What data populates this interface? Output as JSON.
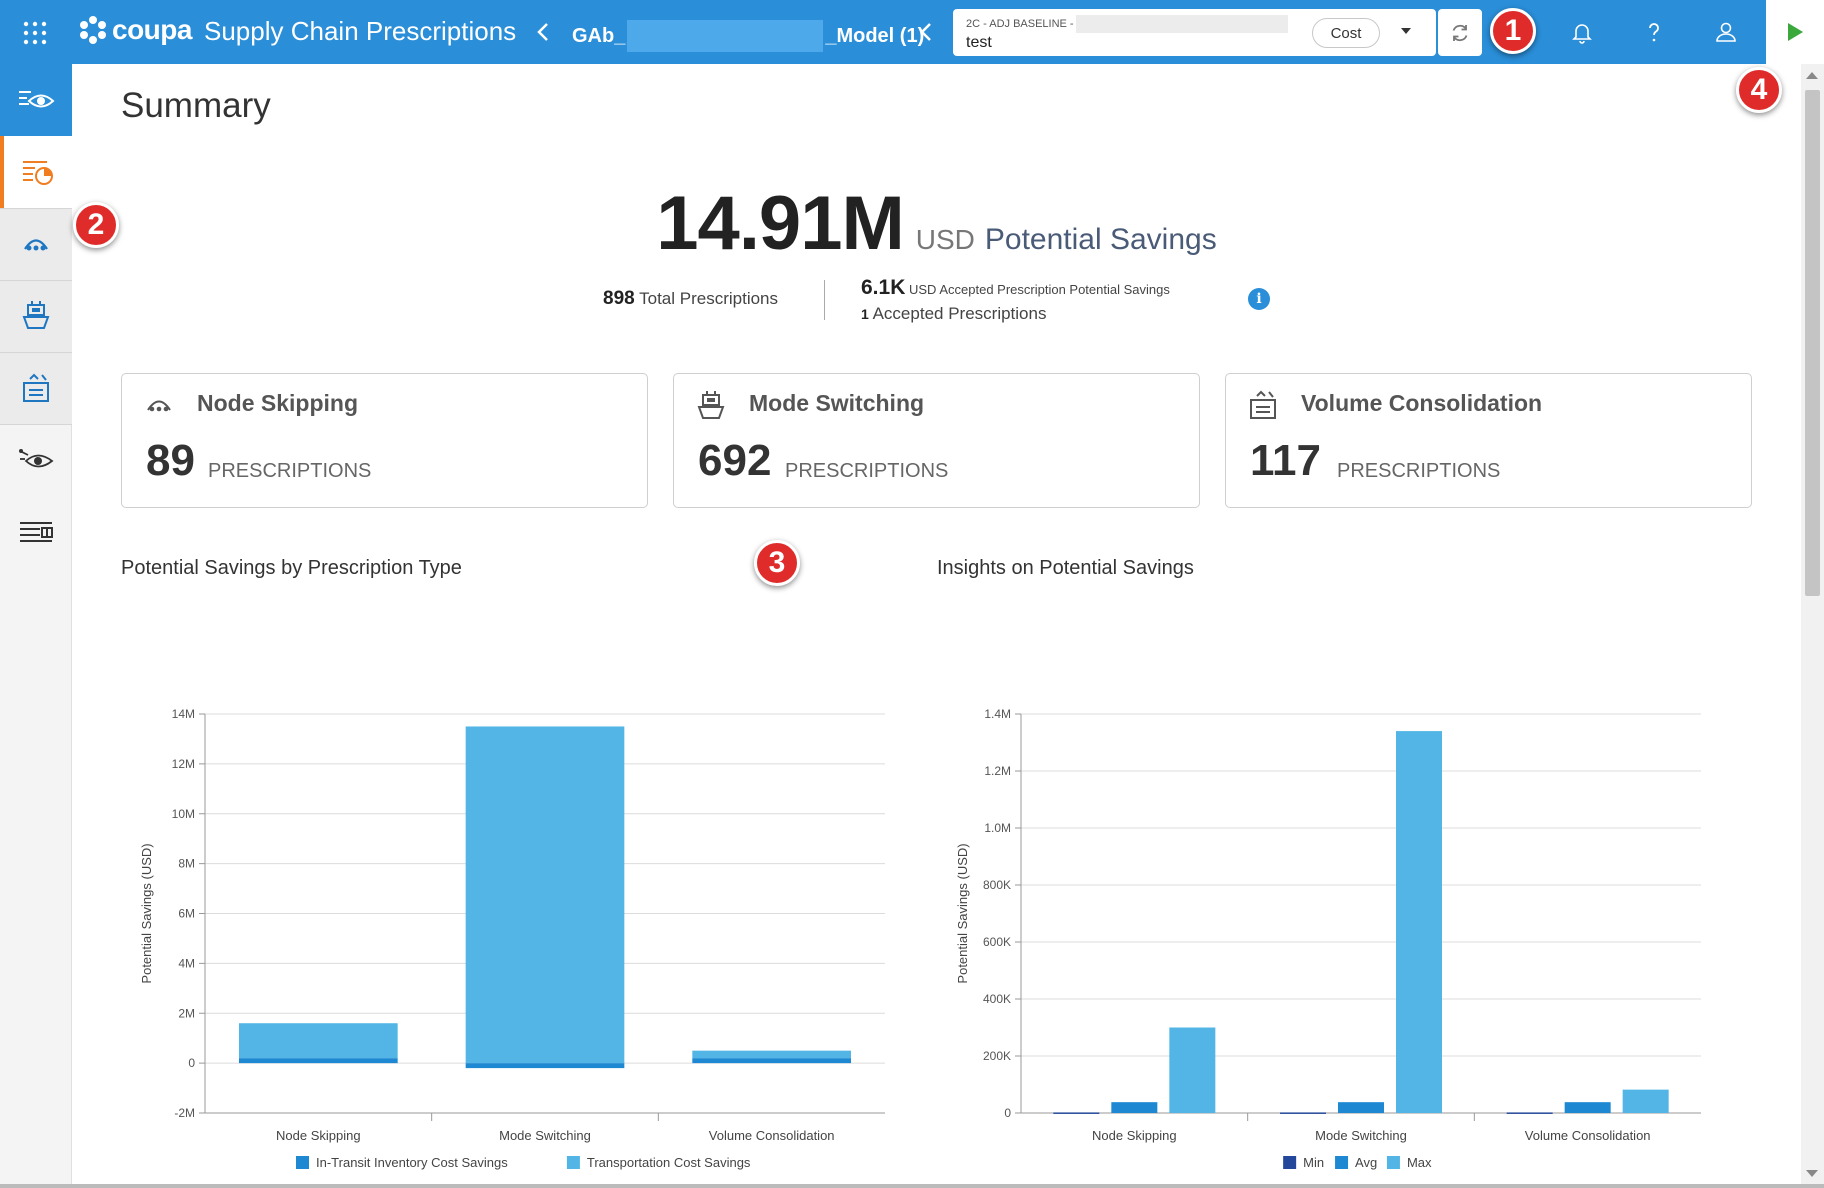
{
  "header": {
    "app_logo": "coupa",
    "app_title": "Supply Chain Prescriptions",
    "model_prefix": "GAb_",
    "model_suffix": "_Model (1)",
    "scenario_label": "2C - ADJ BASELINE -",
    "scenario_value": "test",
    "metric_selector": "Cost",
    "icons": [
      "apps-grid-icon",
      "chevron-left-icon",
      "refresh-icon",
      "bell-icon",
      "help-icon",
      "user-icon",
      "play-icon"
    ]
  },
  "callouts": [
    "1",
    "2",
    "3",
    "4"
  ],
  "sidebar": {
    "items": [
      {
        "name": "overview-icon"
      },
      {
        "name": "summary-icon"
      },
      {
        "name": "node-skipping-icon"
      },
      {
        "name": "mode-switching-icon"
      },
      {
        "name": "volume-consolidation-icon"
      },
      {
        "name": "insights-icon"
      },
      {
        "name": "table-icon"
      }
    ]
  },
  "summary": {
    "title": "Summary",
    "potential_savings_value": "14.91M",
    "currency": "USD",
    "potential_savings_label": "Potential Savings",
    "total_prescriptions_count": "898",
    "total_prescriptions_label": "Total Prescriptions",
    "accepted_savings_value": "6.1K",
    "accepted_savings_currency": "USD",
    "accepted_savings_label": "Accepted Prescription Potential Savings",
    "accepted_count": "1",
    "accepted_label": "Accepted Prescriptions",
    "info": "i"
  },
  "cards": [
    {
      "title": "Node Skipping",
      "count": "89",
      "unit": "PRESCRIPTIONS"
    },
    {
      "title": "Mode Switching",
      "count": "692",
      "unit": "PRESCRIPTIONS"
    },
    {
      "title": "Volume Consolidation",
      "count": "117",
      "unit": "PRESCRIPTIONS"
    }
  ],
  "chart_data": [
    {
      "type": "bar",
      "stacked": true,
      "title": "Potential Savings by Prescription Type",
      "ylabel": "Potential Savings (USD)",
      "categories": [
        "Node Skipping",
        "Mode Switching",
        "Volume Consolidation"
      ],
      "series": [
        {
          "name": "In-Transit Inventory Cost Savings",
          "color": "#1e88d3",
          "values": [
            0.2,
            -0.2,
            0.2
          ]
        },
        {
          "name": "Transportation Cost Savings",
          "color": "#52b5e6",
          "values": [
            1.4,
            13.5,
            0.3
          ]
        }
      ],
      "ylim": [
        -2,
        14
      ],
      "yticks": [
        "-2M",
        "0",
        "2M",
        "4M",
        "6M",
        "8M",
        "10M",
        "12M",
        "14M"
      ],
      "ytick_values": [
        -2,
        0,
        2,
        4,
        6,
        8,
        10,
        12,
        14
      ],
      "grid": true,
      "legend": "bottom"
    },
    {
      "type": "bar",
      "stacked": false,
      "title": "Insights on Potential Savings",
      "ylabel": "Potential Savings (USD)",
      "categories": [
        "Node Skipping",
        "Mode Switching",
        "Volume Consolidation"
      ],
      "series": [
        {
          "name": "Min",
          "color": "#23479a",
          "values": [
            2000,
            2000,
            2000
          ]
        },
        {
          "name": "Avg",
          "color": "#1e88d3",
          "values": [
            38000,
            38000,
            38000
          ]
        },
        {
          "name": "Max",
          "color": "#52b5e6",
          "values": [
            300000,
            1340000,
            82000
          ]
        }
      ],
      "ylim": [
        0,
        1400000
      ],
      "yticks": [
        "0",
        "200K",
        "400K",
        "600K",
        "800K",
        "1.0M",
        "1.2M",
        "1.4M"
      ],
      "ytick_values": [
        0,
        200000,
        400000,
        600000,
        800000,
        1000000,
        1200000,
        1400000
      ],
      "grid": true,
      "legend": "bottom"
    }
  ],
  "colors": {
    "header_blue": "#2a8ed8",
    "active_accent": "#f07d1f",
    "callout_red": "#e02b2b",
    "play_green": "#3aa83a"
  }
}
